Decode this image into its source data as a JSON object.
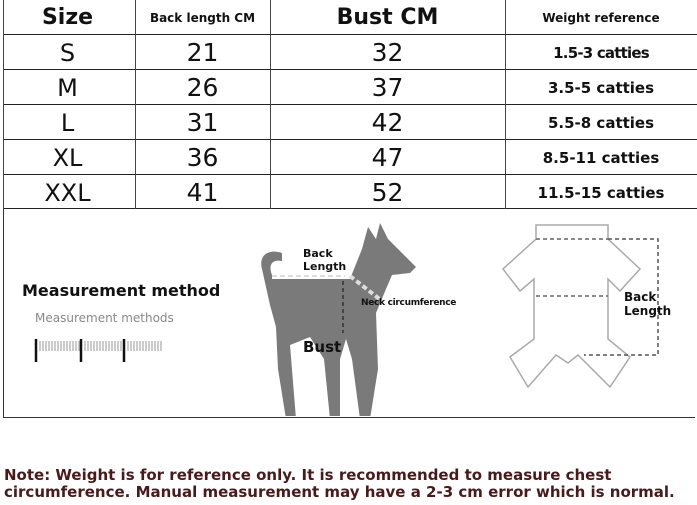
{
  "table": {
    "headers": [
      "Size",
      "Back length CM",
      "Bust CM",
      "Weight reference"
    ],
    "rows": [
      {
        "size": "S",
        "back_length": "21",
        "bust": "32",
        "weight": "1.5-3 catties"
      },
      {
        "size": "M",
        "back_length": "26",
        "bust": "37",
        "weight": "3.5-5 catties"
      },
      {
        "size": "L",
        "back_length": "31",
        "bust": "42",
        "weight": "5.5-8 catties"
      },
      {
        "size": "XL",
        "back_length": "36",
        "bust": "47",
        "weight": "8.5-11 catties"
      },
      {
        "size": "XXL",
        "back_length": "41",
        "bust": "52",
        "weight": "11.5-15 catties"
      }
    ]
  },
  "measurement": {
    "title": "Measurement method",
    "subtitle": "Measurement methods",
    "ruler_icon": "ruler-icon",
    "dog_labels": {
      "back_length": "Back Length",
      "neck": "Neck circumference",
      "bust": "Bust"
    },
    "garment_label": "Back Length"
  },
  "note": "Note: Weight is for reference only. It is recommended to measure chest circumference. Manual measurement may have a 2-3 cm error which is normal.",
  "colors": {
    "note_text": "#4a1a1a",
    "dog": "#7a7a7a"
  }
}
